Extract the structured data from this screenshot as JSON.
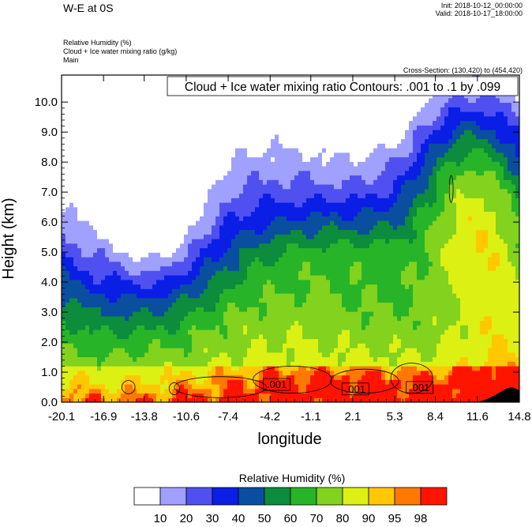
{
  "header": {
    "title": "W-E at 0S",
    "init": "Init: 2018-10-12_00:00:00",
    "valid": "Valid: 2018-10-17_18:00:00",
    "variable1": "Relative Humidity   (%)",
    "variable2": "Cloud + Ice water mixing ratio   (g/kg)",
    "variable3": "Main",
    "cross_section": "Cross-Section: (130,420) to (454,420)"
  },
  "chart_data": {
    "type": "heatmap",
    "contour_label": "Cloud + Ice water mixing ratio Contours: .001 to .1 by .099",
    "xlabel": "longitude",
    "ylabel": "Height (km)",
    "xticks": [
      "-20.1",
      "-16.9",
      "-13.8",
      "-10.6",
      "-7.4",
      "-4.2",
      "-1.1",
      "2.1",
      "5.3",
      "8.4",
      "11.6",
      "14.8"
    ],
    "yticks": [
      "0.0",
      "1.0",
      "2.0",
      "3.0",
      "4.0",
      "5.0",
      "6.0",
      "7.0",
      "8.0",
      "9.0",
      "10.0"
    ],
    "xlim": [
      -20.1,
      14.8
    ],
    "ylim": [
      0,
      10.9
    ],
    "contour_values": [
      ".001",
      ".001",
      ".001"
    ],
    "colorbar": {
      "title": "Relative Humidity  (%)",
      "levels": [
        "10",
        "20",
        "30",
        "40",
        "50",
        "60",
        "70",
        "80",
        "90",
        "95",
        "98"
      ],
      "colors": [
        "#ffffff",
        "#a0a0ff",
        "#5050f0",
        "#0a1ee6",
        "#0a4ea0",
        "#0c8c3c",
        "#28b428",
        "#82d21e",
        "#dcf014",
        "#ffc800",
        "#ff7800",
        "#ff1400"
      ]
    }
  }
}
